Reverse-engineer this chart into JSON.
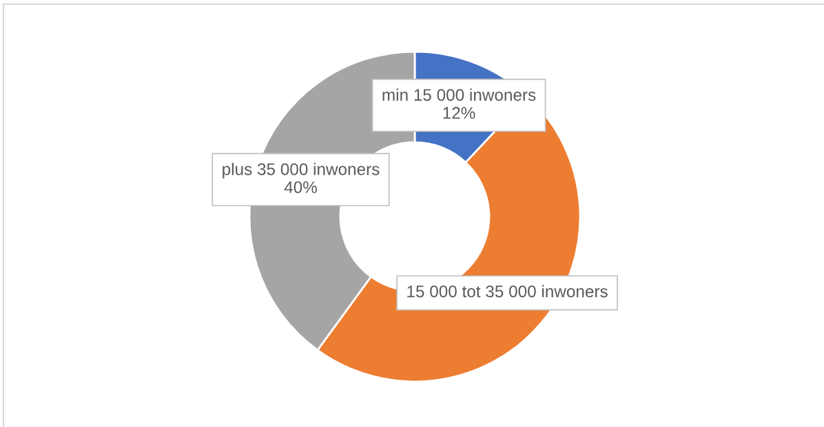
{
  "chart_data": {
    "type": "donut",
    "categories": [
      "min 15 000 inwoners",
      "15 000 tot 35 000 inwoners",
      "plus 35 000 inwoners"
    ],
    "values": [
      12,
      48,
      40
    ],
    "colors": [
      "#4472c4",
      "#ed7d31",
      "#a5a5a5"
    ],
    "value_labels": [
      "12%",
      null,
      "40%"
    ]
  }
}
